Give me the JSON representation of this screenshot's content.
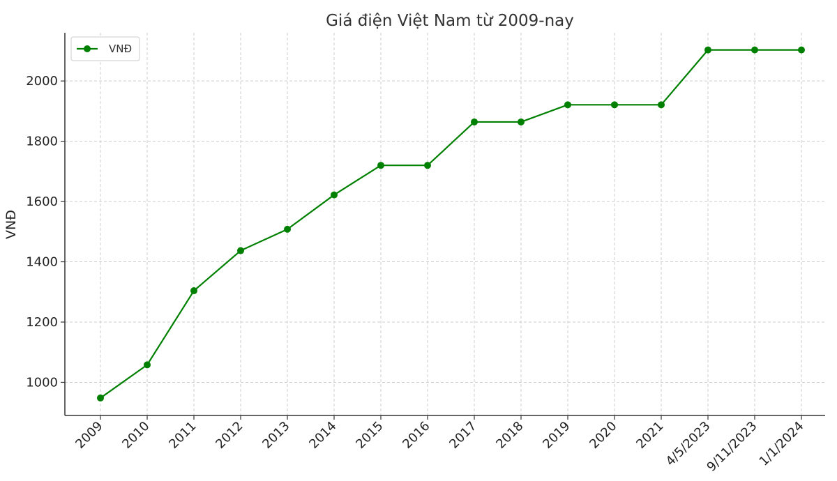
{
  "chart_data": {
    "type": "line",
    "title": "Giá điện Việt Nam từ 2009-nay",
    "xlabel": "",
    "ylabel": "VNĐ",
    "categories": [
      "2009",
      "2010",
      "2011",
      "2012",
      "2013",
      "2014",
      "2015",
      "2016",
      "2017",
      "2018",
      "2019",
      "2020",
      "2021",
      "4/5/2023",
      "9/11/2023",
      "1/1/2024"
    ],
    "series": [
      {
        "name": "VNĐ",
        "values": [
          948,
          1058,
          1304,
          1437,
          1508,
          1622,
          1720,
          1720,
          1864,
          1864,
          1921,
          1921,
          1921,
          2103,
          2103,
          2103
        ]
      }
    ],
    "ylim": [
      890,
      2160
    ],
    "yticks": [
      1000,
      1200,
      1400,
      1600,
      1800,
      2000
    ],
    "grid": true,
    "legend": "top-left",
    "colors": {
      "line": "#008000",
      "grid": "#cccccc",
      "axis": "#333333"
    }
  }
}
